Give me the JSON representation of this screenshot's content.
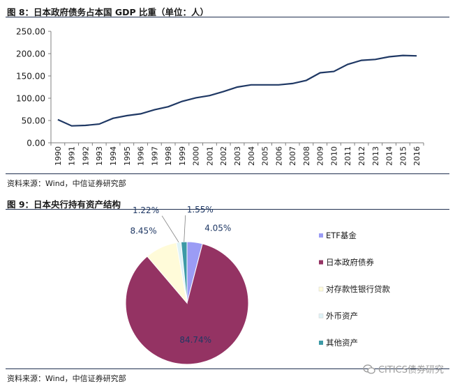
{
  "figure1": {
    "title": "图 8：日本政府债务占本国 GDP 比重（单位：人）",
    "source": "资料来源：Wind，中信证券研究部"
  },
  "figure2": {
    "title": "图 9：日本央行持有资产结构",
    "source": "资料来源：Wind，中信证券研究部"
  },
  "watermark": "CITICS债券研究",
  "colors": {
    "line": "#1f3864",
    "rule": "#1f2f4f",
    "pie": [
      "#9b9cf5",
      "#943363",
      "#fffbd9",
      "#dff3f7",
      "#3d9aa6"
    ]
  },
  "chart_data": [
    {
      "type": "line",
      "title": "",
      "xlabel": "",
      "ylabel": "",
      "ylim": [
        0,
        250
      ],
      "yticks": [
        "0.00",
        "50.00",
        "100.00",
        "150.00",
        "200.00",
        "250.00"
      ],
      "grid": false,
      "x": [
        "1990",
        "1991",
        "1992",
        "1993",
        "1994",
        "1995",
        "1996",
        "1997",
        "1998",
        "1999",
        "2000",
        "2001",
        "2002",
        "2003",
        "2004",
        "2005",
        "2006",
        "2007",
        "2008",
        "2009",
        "2010",
        "2011",
        "2012",
        "2013",
        "2014",
        "2015",
        "2016"
      ],
      "series": [
        {
          "values": [
            52,
            38,
            39,
            42,
            55,
            61,
            65,
            74,
            81,
            93,
            101,
            106,
            115,
            125,
            130,
            130,
            130,
            133,
            140,
            157,
            160,
            176,
            185,
            187,
            193,
            196,
            195
          ]
        }
      ]
    },
    {
      "type": "pie",
      "title": "",
      "legend_position": "right",
      "slices": [
        {
          "label": "ETF基金",
          "value": 4.05,
          "display": "4.05%"
        },
        {
          "label": "日本政府债券",
          "value": 84.74,
          "display": "84.74%"
        },
        {
          "label": "对存款性银行贷款",
          "value": 8.45,
          "display": "8.45%"
        },
        {
          "label": "外币资产",
          "value": 1.22,
          "display": "1.22%"
        },
        {
          "label": "其他资产",
          "value": 1.55,
          "display": "1.55%"
        }
      ]
    }
  ]
}
